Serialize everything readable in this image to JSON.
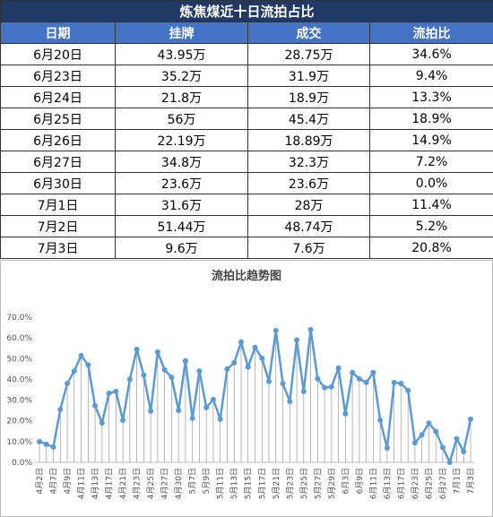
{
  "table": {
    "title": "炼焦煤近十日流拍占比",
    "header": [
      "日期",
      "挂牌",
      "成交",
      "流拍比"
    ],
    "rows": [
      [
        "6月20日",
        "43.95万",
        "28.75万",
        "34.6%"
      ],
      [
        "6月23日",
        "35.2万",
        "31.9万",
        "9.4%"
      ],
      [
        "6月24日",
        "21.8万",
        "18.9万",
        "13.3%"
      ],
      [
        "6月25日",
        "56万",
        "45.4万",
        "18.9%"
      ],
      [
        "6月26日",
        "22.19万",
        "18.89万",
        "14.9%"
      ],
      [
        "6月27日",
        "34.8万",
        "32.3万",
        "7.2%"
      ],
      [
        "6月30日",
        "23.6万",
        "23.6万",
        "0.0%"
      ],
      [
        "7月1日",
        "31.6万",
        "28万",
        "11.4%"
      ],
      [
        "7月2日",
        "51.44万",
        "48.74万",
        "5.2%"
      ],
      [
        "7月3日",
        "9.6万",
        "7.6万",
        "20.8%"
      ]
    ]
  },
  "chart_data": {
    "type": "line",
    "title": "流拍比趋势图",
    "color": "#5b9bd5",
    "drop_lines": true,
    "categories": [
      "4月2日",
      null,
      "4月7日",
      null,
      "4月9日",
      null,
      "4月11日",
      null,
      "4月13日",
      null,
      "4月17日",
      null,
      "4月21日",
      null,
      "4月23日",
      null,
      "4月25日",
      null,
      "4月27日",
      null,
      "4月30日",
      null,
      "5月7日",
      null,
      "5月9日",
      null,
      "5月11日",
      null,
      "5月13日",
      null,
      "5月15日",
      null,
      "5月17日",
      null,
      "5月21日",
      null,
      "5月23日",
      null,
      "5月25日",
      null,
      "5月27日",
      null,
      "5月29日",
      null,
      "6月3日",
      null,
      "6月9日",
      null,
      "6月11日",
      null,
      "6月13日",
      null,
      "6月17日",
      null,
      "6月23日",
      null,
      "6月25日",
      null,
      "6月27日",
      null,
      "7月1日",
      null,
      "7月3日"
    ],
    "values": [
      10,
      8.7,
      7.4,
      25.5,
      38,
      44,
      51.5,
      47,
      27.3,
      19,
      33.3,
      34.2,
      20.3,
      40,
      54.5,
      42,
      24.7,
      53.2,
      44.6,
      41,
      25,
      49,
      21.2,
      44,
      26.4,
      30.3,
      20.8,
      45,
      48,
      58,
      46,
      55.4,
      50.2,
      39,
      63.6,
      38,
      29.4,
      59,
      34.2,
      64,
      40.3,
      36,
      36.4,
      45.5,
      23.4,
      43.3,
      40.3,
      38.5,
      43.3,
      20.3,
      6.9,
      38.5,
      38,
      34.6,
      9.4,
      13.3,
      18.9,
      14.9,
      7.2,
      0,
      11.4,
      5.2,
      20.8
    ],
    "ylim": [
      0,
      70
    ],
    "yticks": [
      {
        "value": 0,
        "label": "0.0%"
      },
      {
        "value": 10,
        "label": "10.0%"
      },
      {
        "value": 20,
        "label": "20.0%"
      },
      {
        "value": 30,
        "label": "30.0%"
      },
      {
        "value": 40,
        "label": "40.0%"
      },
      {
        "value": 50,
        "label": "50.0%"
      },
      {
        "value": 60,
        "label": "60.0%"
      },
      {
        "value": 70,
        "label": "70.0%"
      }
    ]
  }
}
